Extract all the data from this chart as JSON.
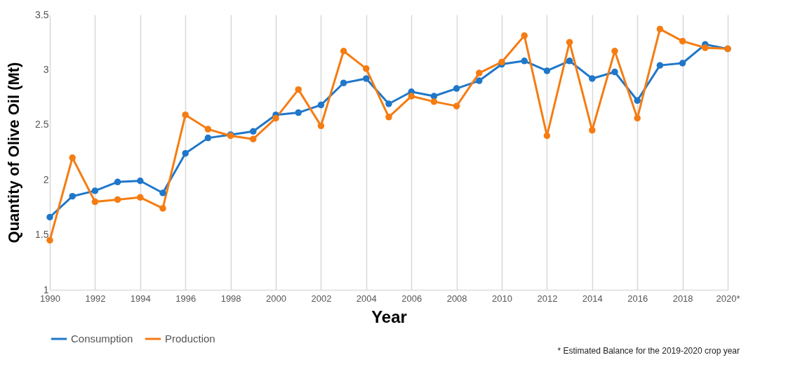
{
  "chart_data": {
    "type": "line",
    "xlabel": "Year",
    "ylabel": "Quantity of Olive Oil (Mt)",
    "x": [
      1990,
      1991,
      1992,
      1993,
      1994,
      1995,
      1996,
      1997,
      1998,
      1999,
      2000,
      2001,
      2002,
      2003,
      2004,
      2005,
      2006,
      2007,
      2008,
      2009,
      2010,
      2011,
      2012,
      2013,
      2014,
      2015,
      2016,
      2017,
      2018,
      2019,
      2020
    ],
    "series": [
      {
        "name": "Consumption",
        "color": "#1f77c9",
        "values": [
          1.66,
          1.85,
          1.9,
          1.98,
          1.99,
          1.88,
          2.24,
          2.38,
          2.41,
          2.44,
          2.59,
          2.61,
          2.68,
          2.88,
          2.92,
          2.69,
          2.8,
          2.76,
          2.83,
          2.9,
          3.05,
          3.08,
          2.99,
          3.08,
          2.92,
          2.98,
          2.72,
          3.04,
          3.06,
          3.23,
          3.19
        ]
      },
      {
        "name": "Production",
        "color": "#f57c12",
        "values": [
          1.45,
          2.2,
          1.8,
          1.82,
          1.84,
          1.74,
          2.59,
          2.46,
          2.4,
          2.37,
          2.56,
          2.82,
          2.49,
          3.17,
          3.01,
          2.57,
          2.76,
          2.71,
          2.67,
          2.97,
          3.07,
          3.31,
          2.4,
          3.25,
          2.45,
          3.17,
          2.56,
          3.37,
          3.26,
          3.2,
          3.19
        ]
      }
    ],
    "xlim": [
      1990,
      2020
    ],
    "xticks": [
      1990,
      1992,
      1994,
      1996,
      1998,
      2000,
      2002,
      2004,
      2006,
      2008,
      2010,
      2012,
      2014,
      2016,
      2018,
      {
        "value": 2020,
        "label": "2020*"
      }
    ],
    "ylim": [
      1,
      3.5
    ],
    "yticks": [
      1,
      1.5,
      2,
      2.5,
      3,
      3.5
    ],
    "grid": "x",
    "legend": "bottom",
    "marker": "circle",
    "line_style": "solid",
    "annotations": [
      "* Estimated Balance for the 2019-2020 crop year"
    ]
  }
}
